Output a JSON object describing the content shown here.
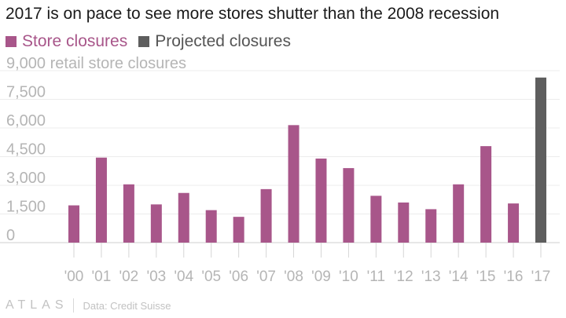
{
  "title": "2017 is on pace to see more stores shutter than the 2008 recession",
  "legend": [
    {
      "label": "Store closures",
      "color": "#a8568a"
    },
    {
      "label": "Projected closures",
      "color": "#5e5e5e"
    }
  ],
  "footer": {
    "brand": "ATLAS",
    "source": "Data: Credit Suisse"
  },
  "chart_data": {
    "type": "bar",
    "ylabel": "9,000 retail store closures",
    "ylim": [
      0,
      9000
    ],
    "yticks": [
      "0",
      "1,500",
      "3,000",
      "4,500",
      "6,000",
      "7,500"
    ],
    "ytick_values": [
      0,
      1500,
      3000,
      4500,
      6000,
      7500
    ],
    "categories": [
      "'00",
      "'01",
      "'02",
      "'03",
      "'04",
      "'05",
      "'06",
      "'07",
      "'08",
      "'09",
      "'10",
      "'11",
      "'12",
      "'13",
      "'14",
      "'15",
      "'16",
      "'17"
    ],
    "series": [
      {
        "name": "Store closures",
        "color": "#a8568a",
        "values": [
          1950,
          4450,
          3050,
          2000,
          2600,
          1700,
          1350,
          2800,
          6150,
          4400,
          3900,
          2450,
          2100,
          1750,
          3050,
          5050,
          2050,
          null
        ]
      },
      {
        "name": "Projected closures",
        "color": "#5e5e5e",
        "values": [
          null,
          null,
          null,
          null,
          null,
          null,
          null,
          null,
          null,
          null,
          null,
          null,
          null,
          null,
          null,
          null,
          null,
          8640
        ]
      }
    ],
    "grid": true,
    "legend_position": "top-left"
  }
}
